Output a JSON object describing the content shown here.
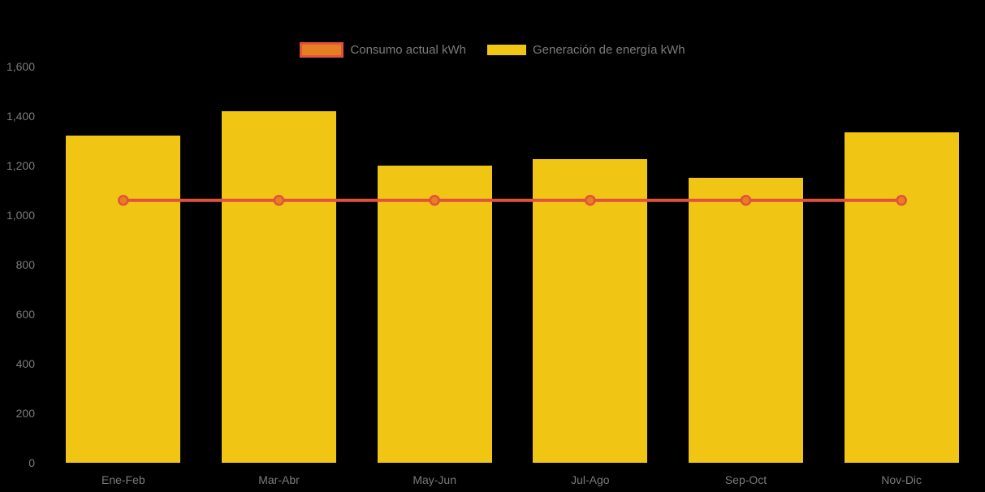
{
  "chart_data": {
    "type": "bar",
    "title": "",
    "xlabel": "",
    "ylabel": "",
    "categories": [
      "Ene-Feb",
      "Mar-Abr",
      "May-Jun",
      "Jul-Ago",
      "Sep-Oct",
      "Nov-Dic"
    ],
    "series": [
      {
        "name": "Consumo actual kWh",
        "kind": "line",
        "values": [
          1060,
          1060,
          1060,
          1060,
          1060,
          1060
        ],
        "line_color": "#e2513e",
        "point_fill": "#e67e22",
        "point_border": "#e2513e"
      },
      {
        "name": "Generación de energía kWh",
        "kind": "bar",
        "values": [
          1320,
          1420,
          1200,
          1225,
          1150,
          1335
        ],
        "color": "#f0c514"
      }
    ],
    "ylim": [
      0,
      1600
    ],
    "y_ticks": [
      {
        "value": 0,
        "label": "0"
      },
      {
        "value": 200,
        "label": "200"
      },
      {
        "value": 400,
        "label": "400"
      },
      {
        "value": 600,
        "label": "600"
      },
      {
        "value": 800,
        "label": "800"
      },
      {
        "value": 1000,
        "label": "1,000"
      },
      {
        "value": 1200,
        "label": "1,200"
      },
      {
        "value": 1400,
        "label": "1,400"
      },
      {
        "value": 1600,
        "label": "1,600"
      }
    ],
    "grid": false,
    "legend_position": "top",
    "label_color": "#7b7b7b",
    "background_color": "#000000"
  }
}
